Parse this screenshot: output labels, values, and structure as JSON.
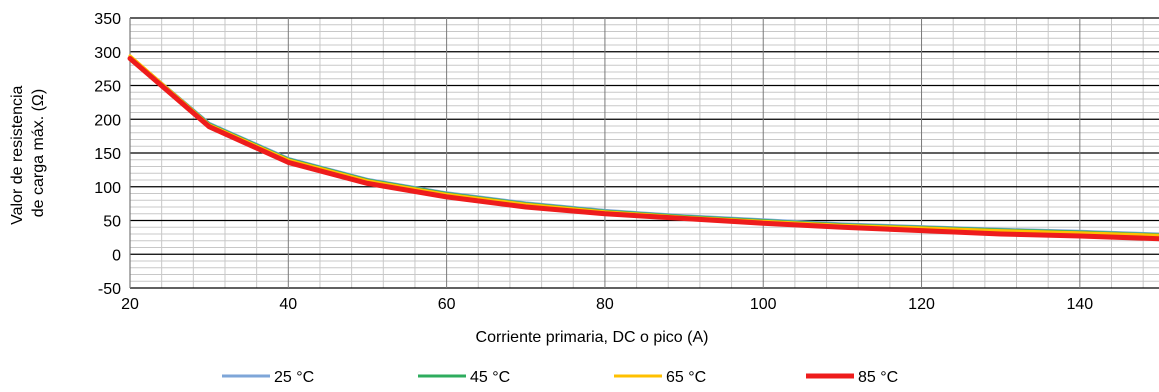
{
  "chart_data": {
    "type": "line",
    "title": "",
    "xlabel": "Corriente primaria, DC o pico (A)",
    "ylabel_lines": [
      "Valor de resistencia",
      "de carga máx. (Ω)"
    ],
    "xlim": [
      20,
      150
    ],
    "ylim": [
      -50,
      350
    ],
    "x_ticks": [
      20,
      40,
      60,
      80,
      100,
      120,
      140
    ],
    "y_ticks": [
      -50,
      0,
      50,
      100,
      150,
      200,
      250,
      300,
      350
    ],
    "grid": "on",
    "legend_position": "bottom",
    "x": [
      20,
      30,
      40,
      50,
      60,
      70,
      80,
      90,
      100,
      110,
      120,
      130,
      140,
      150
    ],
    "series": [
      {
        "name": "25 °C",
        "color": "#7ea6d8",
        "width": 3,
        "values": [
          293,
          194,
          142,
          111,
          91,
          76,
          65,
          57,
          51,
          45,
          41,
          37,
          34,
          30
        ]
      },
      {
        "name": "45 °C",
        "color": "#2eac5e",
        "width": 3,
        "values": [
          293,
          193,
          141,
          110,
          90,
          75,
          64,
          56,
          50,
          44,
          40,
          36,
          33,
          29
        ]
      },
      {
        "name": "65 °C",
        "color": "#ffc000",
        "width": 3,
        "values": [
          294,
          192,
          140,
          109,
          89,
          74,
          63,
          55,
          49,
          43,
          39,
          35,
          32,
          28
        ]
      },
      {
        "name": "85 °C",
        "color": "#ee1c1c",
        "width": 5,
        "values": [
          290,
          189,
          136,
          105,
          85,
          70,
          60,
          53,
          46,
          40,
          35,
          30,
          27,
          23
        ]
      }
    ]
  }
}
